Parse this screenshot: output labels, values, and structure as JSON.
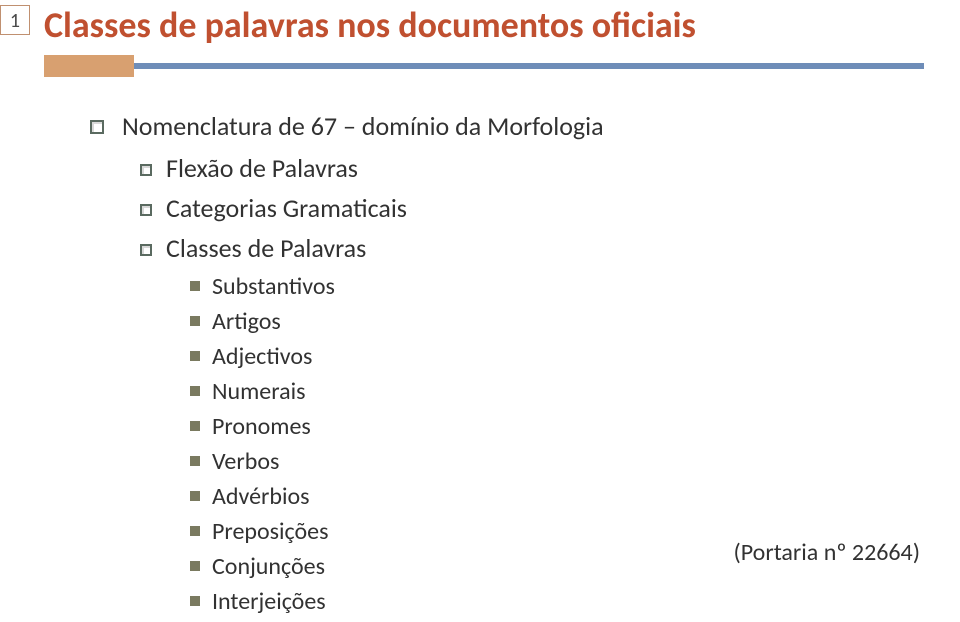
{
  "page_number": "1",
  "title": "Classes de palavras nos documentos oficiais",
  "colors": {
    "title_color": "#c05030",
    "badge_border": "#c09070",
    "orange_block": "#d8a070",
    "blue_line": "#6e8db8",
    "text": "#323232",
    "square_bullet": "#7a7a60",
    "box_bullet_border": "#5a6a60"
  },
  "l1": {
    "text": "Nomenclatura de 67 – domínio da Morfologia"
  },
  "l2": [
    "Flexão de Palavras",
    "Categorias Gramaticais",
    "Classes de Palavras"
  ],
  "l3": [
    "Substantivos",
    "Artigos",
    "Adjectivos",
    "Numerais",
    "Pronomes",
    "Verbos",
    "Advérbios",
    "Preposições",
    "Conjunções",
    "Interjeições"
  ],
  "footnote": "(Portaria nº 22664)"
}
